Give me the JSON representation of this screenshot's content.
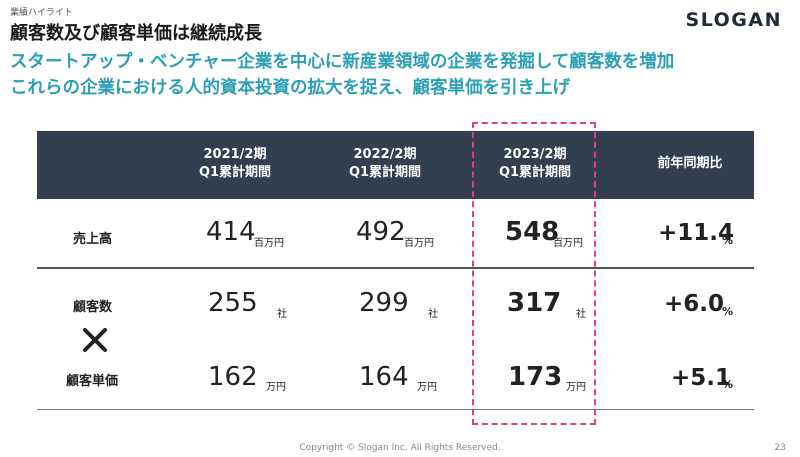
{
  "header": {
    "section_label": "業績ハイライト",
    "title": "顧客数及び顧客単価は継続成長",
    "logo": "SLOGAN"
  },
  "subtitle": {
    "line1": "スタートアップ・ベンチャー企業を中心に新産業領域の企業を発掘して顧客数を増加",
    "line2": "これらの企業における人的資本投資の拡大を捉え、顧客単価を引き上げ"
  },
  "table": {
    "columns": [
      {
        "line1": "2021/2期",
        "line2": "Q1累計期間"
      },
      {
        "line1": "2022/2期",
        "line2": "Q1累計期間"
      },
      {
        "line1": "2023/2期",
        "line2": "Q1累計期間"
      },
      {
        "line1": "前年同期比"
      }
    ],
    "rows": {
      "sales": {
        "label": "売上高",
        "values": [
          "414",
          "492",
          "548"
        ],
        "unit": "百万円",
        "change": "+11.4",
        "change_unit": "%"
      },
      "customers": {
        "label": "顧客数",
        "values": [
          "255",
          "299",
          "317"
        ],
        "unit": "社",
        "change": "+6.0",
        "change_unit": "%"
      },
      "unit_price": {
        "label": "顧客単価",
        "values": [
          "162",
          "164",
          "173"
        ],
        "unit": "万円",
        "change": "+5.1",
        "change_unit": "%"
      }
    },
    "operator_icon": "times-icon",
    "highlight_color": "#e0407b",
    "header_color": "#343e51"
  },
  "footer": {
    "copyright": "Copyright © Slogan Inc. All Rights Reserved.",
    "page_number": "23"
  },
  "colors": {
    "accent": "#2a9fb5"
  }
}
